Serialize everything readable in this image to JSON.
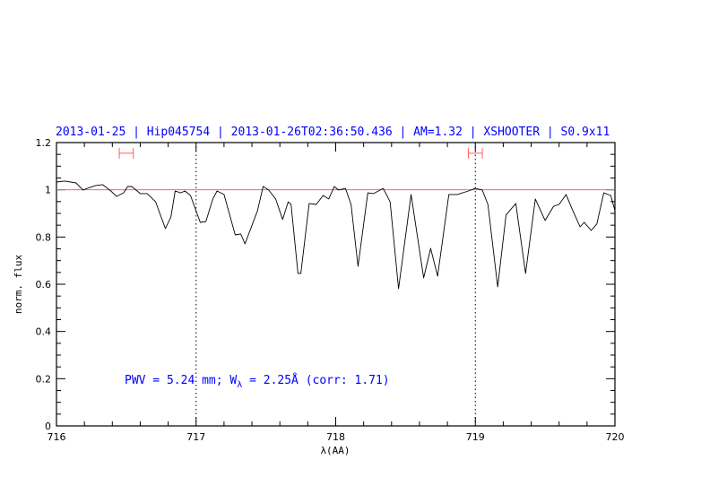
{
  "chart_data": {
    "type": "line",
    "title": "2013-01-25 | Hip045754 | 2013-01-26T02:36:50.436 | AM=1.32 | XSHOOTER | S0.9x11",
    "xlabel": "λ(AA)",
    "ylabel": "norm. flux",
    "xlim": [
      716,
      720
    ],
    "ylim": [
      0,
      1.2
    ],
    "x_ticks": [
      "716",
      "717",
      "718",
      "719",
      "720"
    ],
    "y_ticks": [
      "0",
      "0.2",
      "0.4",
      "0.6",
      "0.8",
      "1",
      "1.2"
    ],
    "grid": false,
    "annotation": "PWV = 5.24 mm; W",
    "annotation_sub": "λ",
    "annotation_rest": " = 2.25Å (corr: 1.71)",
    "reference_line": {
      "y": 1.0,
      "color": "#e07070"
    },
    "vertical_dotted_lines": [
      717,
      719
    ],
    "ranges": [
      {
        "x": [
          716.45,
          716.55
        ],
        "y": 1.155
      },
      {
        "x": [
          718.95,
          719.05
        ],
        "y": 1.155
      }
    ],
    "range_color": "#ff6060",
    "series": [
      {
        "color": "#000000",
        "x": [
          716.0,
          716.06,
          716.14,
          716.19,
          716.22,
          716.28,
          716.33,
          716.39,
          716.43,
          716.48,
          716.51,
          716.54,
          716.6,
          716.65,
          716.71,
          716.78,
          716.82,
          716.85,
          716.89,
          716.92,
          716.96,
          717.03,
          717.07,
          717.12,
          717.15,
          717.2,
          717.28,
          717.32,
          717.35,
          717.44,
          717.48,
          717.52,
          717.57,
          717.62,
          717.66,
          717.68,
          717.73,
          717.75,
          717.81,
          717.86,
          717.91,
          717.95,
          717.99,
          718.02,
          718.07,
          718.11,
          718.16,
          718.23,
          718.27,
          718.34,
          718.39,
          718.45,
          718.54,
          718.63,
          718.68,
          718.73,
          718.81,
          718.87,
          718.95,
          719.0,
          719.05,
          719.09,
          719.16,
          719.22,
          719.29,
          719.36,
          719.43,
          719.5,
          719.56,
          719.6,
          719.65,
          719.69,
          719.75,
          719.78,
          719.83,
          719.87,
          719.92,
          719.97,
          720.0
        ],
        "y": [
          1.033,
          1.037,
          1.029,
          0.999,
          1.006,
          1.018,
          1.022,
          0.995,
          0.972,
          0.987,
          1.014,
          1.014,
          0.984,
          0.984,
          0.949,
          0.836,
          0.885,
          0.995,
          0.987,
          0.995,
          0.976,
          0.862,
          0.866,
          0.961,
          0.995,
          0.98,
          0.809,
          0.813,
          0.771,
          0.912,
          1.014,
          0.999,
          0.961,
          0.874,
          0.949,
          0.938,
          0.646,
          0.646,
          0.942,
          0.938,
          0.976,
          0.961,
          1.014,
          0.999,
          1.006,
          0.938,
          0.676,
          0.987,
          0.984,
          1.006,
          0.949,
          0.581,
          0.98,
          0.627,
          0.752,
          0.634,
          0.98,
          0.98,
          0.995,
          1.006,
          0.999,
          0.938,
          0.589,
          0.893,
          0.942,
          0.646,
          0.961,
          0.87,
          0.93,
          0.938,
          0.98,
          0.923,
          0.843,
          0.862,
          0.828,
          0.855,
          0.987,
          0.976,
          0.912
        ]
      }
    ]
  }
}
